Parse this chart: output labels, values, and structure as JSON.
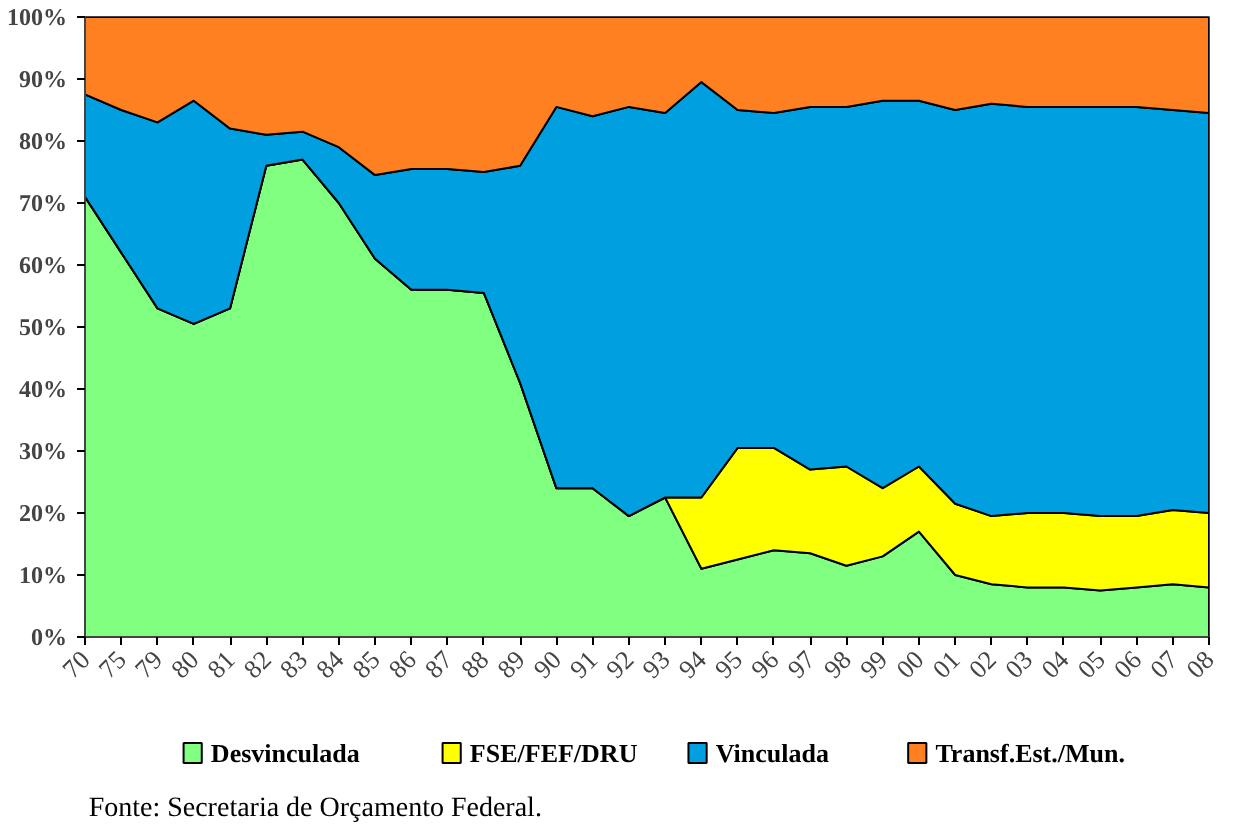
{
  "chart_data": {
    "type": "area",
    "stacked": true,
    "categories": [
      "70",
      "75",
      "79",
      "80",
      "81",
      "82",
      "83",
      "84",
      "85",
      "86",
      "87",
      "88",
      "89",
      "90",
      "91",
      "92",
      "93",
      "94",
      "95",
      "96",
      "97",
      "98",
      "99",
      "00",
      "01",
      "02",
      "03",
      "04",
      "05",
      "06",
      "07",
      "08"
    ],
    "series": [
      {
        "name": "Desvinculada",
        "color": "#80ff80",
        "values": [
          71,
          62,
          53,
          50.5,
          53,
          76,
          77,
          70,
          61,
          56,
          56,
          55.5,
          41,
          24,
          24,
          19.5,
          22.5,
          11,
          12.5,
          14,
          13.5,
          11.5,
          13,
          17,
          10,
          8.5,
          8,
          8,
          7.5,
          8,
          8.5,
          8
        ]
      },
      {
        "name": "FSE/FEF/DRU",
        "color": "#ffff00",
        "values": [
          0,
          0,
          0,
          0,
          0,
          0,
          0,
          0,
          0,
          0,
          0,
          0,
          0,
          0,
          0,
          0,
          0,
          11.5,
          18,
          16.5,
          13.5,
          16,
          11,
          10.5,
          11.5,
          11,
          12,
          12,
          12,
          11.5,
          12,
          12
        ]
      },
      {
        "name": "Vinculada",
        "color": "#00a0e0",
        "values": [
          16.5,
          23,
          30,
          36,
          29,
          5,
          4.5,
          9,
          13.5,
          19.5,
          19.5,
          19.5,
          35,
          61.5,
          60,
          66,
          62,
          67,
          54.5,
          54,
          58.5,
          58,
          62.5,
          59,
          63.5,
          66.5,
          65.5,
          65.5,
          66,
          66,
          64.5,
          64.5
        ]
      },
      {
        "name": "Transf.Est./Mun.",
        "color": "#ff8020",
        "values": [
          12.5,
          15,
          17,
          13.5,
          18,
          19,
          18.5,
          21,
          25.5,
          24.5,
          24.5,
          25,
          24,
          14.5,
          16,
          14.5,
          15.5,
          10.5,
          15,
          15.5,
          14.5,
          14.5,
          13.5,
          13.5,
          15,
          14,
          14.5,
          14.5,
          14.5,
          14.5,
          15,
          15.5
        ]
      }
    ],
    "ylim": [
      0,
      100
    ],
    "yticks": [
      {
        "value": 0,
        "label": "0%"
      },
      {
        "value": 10,
        "label": "10%"
      },
      {
        "value": 20,
        "label": "20%"
      },
      {
        "value": 30,
        "label": "30%"
      },
      {
        "value": 40,
        "label": "40%"
      },
      {
        "value": 50,
        "label": "50%"
      },
      {
        "value": 60,
        "label": "60%"
      },
      {
        "value": 70,
        "label": "70%"
      },
      {
        "value": 80,
        "label": "80%"
      },
      {
        "value": 90,
        "label": "90%"
      },
      {
        "value": 100,
        "label": "100%"
      }
    ],
    "grid": false,
    "legend": "bottom",
    "annotations": [
      "Fonte: Secretaria de Orçamento Federal."
    ]
  }
}
